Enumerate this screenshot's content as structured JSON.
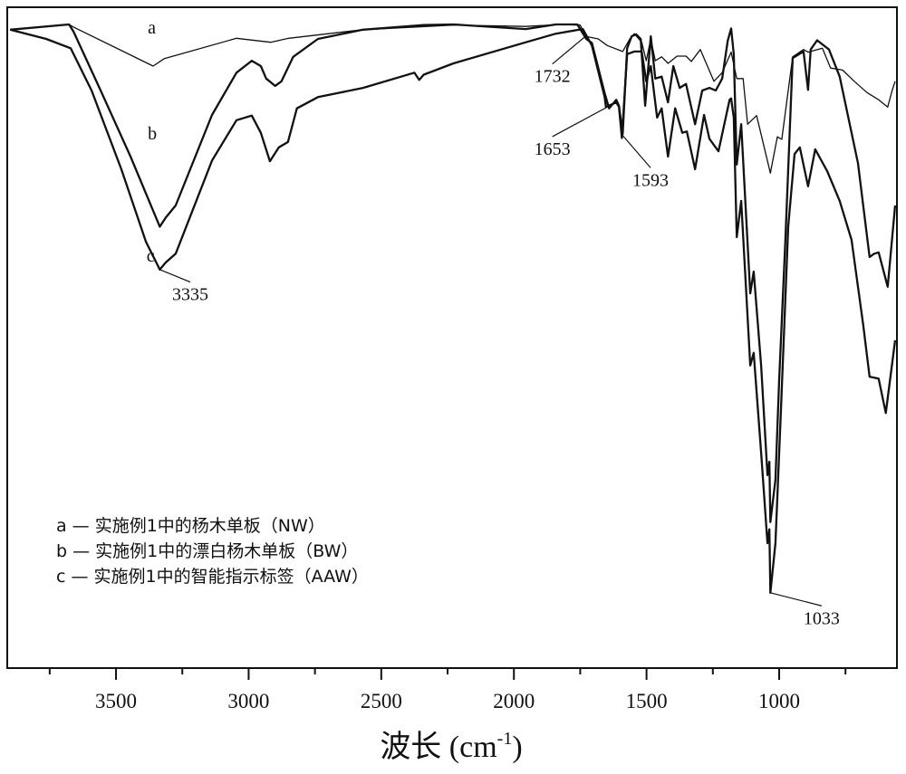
{
  "chart_data": {
    "type": "line",
    "title": "",
    "xlabel": {
      "text": "波长 (cm",
      "sup": "-1",
      "close": ")"
    },
    "ylabel": "",
    "xlim": [
      3910,
      556
    ],
    "ylim": [
      0,
      100
    ],
    "x_reversed": true,
    "grid": false,
    "x_ticks": [
      "3500",
      "3000",
      "2500",
      "2000",
      "1500",
      "1000"
    ],
    "x_tick_values": [
      3500,
      3000,
      2500,
      2000,
      1500,
      1000
    ],
    "x_minor_tick_values": [
      3750,
      3250,
      2750,
      2250,
      1750,
      1250,
      750
    ],
    "colors": {
      "line": "#111111",
      "axis": "#111111"
    },
    "series": [
      {
        "name": "a",
        "label": "a",
        "label_at": [
          3380,
          96
        ],
        "width": "thin",
        "points": [
          [
            3899,
            96.6
          ],
          [
            3677,
            97.4
          ],
          [
            3660,
            97.0
          ],
          [
            3360,
            91.1
          ],
          [
            3319,
            92.2
          ],
          [
            3046,
            95.3
          ],
          [
            2917,
            94.7
          ],
          [
            2849,
            95.3
          ],
          [
            2569,
            96.6
          ],
          [
            2228,
            97.3
          ],
          [
            1955,
            97.1
          ],
          [
            1819,
            97.4
          ],
          [
            1750,
            97.3
          ],
          [
            1730,
            95.6
          ],
          [
            1682,
            95.2
          ],
          [
            1648,
            94.2
          ],
          [
            1590,
            93.3
          ],
          [
            1563,
            95.2
          ],
          [
            1546,
            96.0
          ],
          [
            1518,
            94.7
          ],
          [
            1501,
            91.9
          ],
          [
            1484,
            95.2
          ],
          [
            1467,
            91.9
          ],
          [
            1443,
            92.5
          ],
          [
            1419,
            91.5
          ],
          [
            1385,
            92.6
          ],
          [
            1351,
            92.6
          ],
          [
            1331,
            91.8
          ],
          [
            1297,
            93.6
          ],
          [
            1246,
            88.8
          ],
          [
            1215,
            90.1
          ],
          [
            1181,
            93.2
          ],
          [
            1160,
            89.2
          ],
          [
            1136,
            89.2
          ],
          [
            1119,
            82.3
          ],
          [
            1085,
            83.6
          ],
          [
            1033,
            74.9
          ],
          [
            1007,
            80.4
          ],
          [
            990,
            80.0
          ],
          [
            949,
            92.5
          ],
          [
            908,
            93.6
          ],
          [
            891,
            93.2
          ],
          [
            837,
            93.8
          ],
          [
            806,
            90.8
          ],
          [
            761,
            90.5
          ],
          [
            717,
            88.8
          ],
          [
            669,
            87.1
          ],
          [
            625,
            86.0
          ],
          [
            591,
            84.9
          ],
          [
            574,
            87.4
          ],
          [
            563,
            88.8
          ]
        ]
      },
      {
        "name": "b",
        "label": "b",
        "label_at": [
          3380,
          80
        ],
        "width": "thick",
        "points": [
          [
            3899,
            96.6
          ],
          [
            3677,
            97.4
          ],
          [
            3660,
            96.3
          ],
          [
            3558,
            87.4
          ],
          [
            3445,
            77.4
          ],
          [
            3335,
            66.8
          ],
          [
            3312,
            68.2
          ],
          [
            3275,
            70.0
          ],
          [
            3138,
            83.7
          ],
          [
            3046,
            90.1
          ],
          [
            2988,
            91.9
          ],
          [
            2954,
            91.1
          ],
          [
            2934,
            89.2
          ],
          [
            2900,
            88.1
          ],
          [
            2876,
            88.8
          ],
          [
            2832,
            92.5
          ],
          [
            2739,
            95.2
          ],
          [
            2569,
            96.6
          ],
          [
            2340,
            97.3
          ],
          [
            2228,
            97.4
          ],
          [
            1955,
            96.7
          ],
          [
            1842,
            97.4
          ],
          [
            1761,
            97.4
          ],
          [
            1727,
            95.2
          ],
          [
            1706,
            94.6
          ],
          [
            1658,
            87.0
          ],
          [
            1641,
            84.7
          ],
          [
            1614,
            86.0
          ],
          [
            1604,
            85.1
          ],
          [
            1590,
            80.8
          ],
          [
            1573,
            93.8
          ],
          [
            1556,
            95.6
          ],
          [
            1539,
            95.9
          ],
          [
            1522,
            95.2
          ],
          [
            1505,
            85.1
          ],
          [
            1484,
            95.6
          ],
          [
            1467,
            89.2
          ],
          [
            1443,
            89.5
          ],
          [
            1419,
            85.6
          ],
          [
            1399,
            91.1
          ],
          [
            1375,
            87.8
          ],
          [
            1351,
            88.4
          ],
          [
            1317,
            82.3
          ],
          [
            1290,
            87.4
          ],
          [
            1263,
            87.8
          ],
          [
            1239,
            87.4
          ],
          [
            1215,
            89.2
          ],
          [
            1194,
            94.9
          ],
          [
            1181,
            96.8
          ],
          [
            1171,
            92.9
          ],
          [
            1160,
            76.2
          ],
          [
            1143,
            82.3
          ],
          [
            1109,
            56.7
          ],
          [
            1096,
            60.0
          ],
          [
            1068,
            45.8
          ],
          [
            1044,
            29.2
          ],
          [
            1037,
            31.2
          ],
          [
            1033,
            22.1
          ],
          [
            1014,
            28.5
          ],
          [
            1000,
            43.6
          ],
          [
            976,
            65.2
          ],
          [
            949,
            92.3
          ],
          [
            908,
            93.3
          ],
          [
            891,
            87.5
          ],
          [
            881,
            93.6
          ],
          [
            857,
            95.0
          ],
          [
            812,
            93.6
          ],
          [
            772,
            89.5
          ],
          [
            703,
            76.4
          ],
          [
            659,
            62.2
          ],
          [
            642,
            62.7
          ],
          [
            625,
            62.9
          ],
          [
            591,
            57.7
          ],
          [
            563,
            70.0
          ]
        ]
      },
      {
        "name": "c",
        "label": "c",
        "label_at": [
          3385,
          61.5
        ],
        "width": "thick",
        "points": [
          [
            3899,
            96.6
          ],
          [
            3763,
            95.2
          ],
          [
            3671,
            93.8
          ],
          [
            3592,
            87.4
          ],
          [
            3480,
            75.5
          ],
          [
            3387,
            64.5
          ],
          [
            3335,
            60.3
          ],
          [
            3312,
            61.4
          ],
          [
            3275,
            62.7
          ],
          [
            3138,
            76.8
          ],
          [
            3046,
            82.9
          ],
          [
            2988,
            83.6
          ],
          [
            2954,
            81.0
          ],
          [
            2920,
            76.7
          ],
          [
            2886,
            78.8
          ],
          [
            2852,
            79.6
          ],
          [
            2818,
            84.7
          ],
          [
            2739,
            86.4
          ],
          [
            2569,
            87.8
          ],
          [
            2375,
            90.1
          ],
          [
            2357,
            89.0
          ],
          [
            2340,
            89.8
          ],
          [
            2228,
            91.5
          ],
          [
            1955,
            94.7
          ],
          [
            1842,
            96.0
          ],
          [
            1740,
            96.7
          ],
          [
            1706,
            94.2
          ],
          [
            1658,
            86.4
          ],
          [
            1653,
            84.9
          ],
          [
            1614,
            85.6
          ],
          [
            1604,
            84.9
          ],
          [
            1593,
            80.2
          ],
          [
            1573,
            92.9
          ],
          [
            1546,
            93.3
          ],
          [
            1518,
            93.3
          ],
          [
            1501,
            88.8
          ],
          [
            1484,
            91.1
          ],
          [
            1460,
            83.3
          ],
          [
            1443,
            84.7
          ],
          [
            1419,
            77.4
          ],
          [
            1392,
            84.7
          ],
          [
            1365,
            81.0
          ],
          [
            1348,
            81.2
          ],
          [
            1317,
            75.5
          ],
          [
            1283,
            83.7
          ],
          [
            1263,
            80.1
          ],
          [
            1229,
            78.2
          ],
          [
            1187,
            86.0
          ],
          [
            1181,
            86.2
          ],
          [
            1171,
            83.3
          ],
          [
            1160,
            65.2
          ],
          [
            1143,
            70.7
          ],
          [
            1109,
            45.8
          ],
          [
            1096,
            47.7
          ],
          [
            1068,
            32.6
          ],
          [
            1044,
            18.9
          ],
          [
            1037,
            21.0
          ],
          [
            1033,
            11.4
          ],
          [
            1014,
            18.9
          ],
          [
            993,
            39.5
          ],
          [
            966,
            66.8
          ],
          [
            942,
            77.8
          ],
          [
            922,
            78.8
          ],
          [
            891,
            72.9
          ],
          [
            864,
            78.5
          ],
          [
            819,
            75.2
          ],
          [
            772,
            70.7
          ],
          [
            727,
            64.8
          ],
          [
            683,
            51.9
          ],
          [
            659,
            44.1
          ],
          [
            625,
            43.8
          ],
          [
            598,
            38.6
          ],
          [
            563,
            49.6
          ]
        ]
      }
    ],
    "annotations": [
      {
        "text": "3335",
        "point": [
          3335,
          60.3
        ],
        "text_at": [
          3220,
          56.5
        ]
      },
      {
        "text": "1732",
        "point": [
          1730,
          95.6
        ],
        "text_at": [
          1855,
          89.5
        ]
      },
      {
        "text": "1653",
        "point": [
          1648,
          84.9
        ],
        "text_at": [
          1855,
          78.5
        ]
      },
      {
        "text": "1593",
        "point": [
          1590,
          80.6
        ],
        "text_at": [
          1485,
          73.8
        ]
      },
      {
        "text": "1033",
        "point": [
          1033,
          11.4
        ],
        "text_at": [
          840,
          7.5
        ]
      }
    ],
    "legend": {
      "placement": "bottom-left",
      "entries": [
        "a — 实施例1中的杨木单板（NW）",
        "b — 实施例1中的漂白杨木单板（BW）",
        "c — 实施例1中的智能指示标签（AAW）"
      ]
    }
  }
}
